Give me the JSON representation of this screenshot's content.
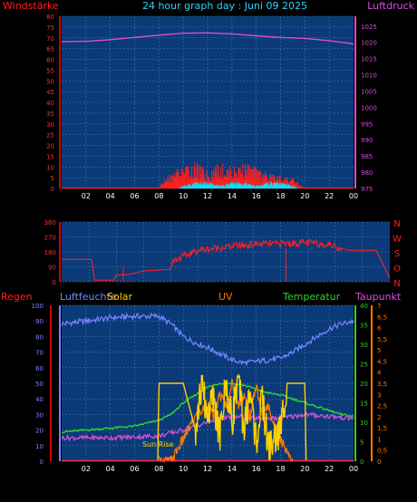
{
  "header": {
    "left": "Windstärke",
    "center": "24 hour graph day : Juni 09 2025",
    "right": "Luftdruck"
  },
  "colors": {
    "plot_bg": "#0a3a78",
    "grid": "#4f7fb8",
    "wind": "#ff2020",
    "gust": "#00e5ff",
    "pressure": "#d94cd9",
    "direction": "#ff2020",
    "humidity": "#7a86ff",
    "solar": "#ffd000",
    "uv": "#ff7a00",
    "temperature": "#30d030",
    "dewpoint": "#d94cd9",
    "rain": "#ff3030"
  },
  "x_ticks": [
    "02",
    "04",
    "06",
    "08",
    "10",
    "12",
    "14",
    "16",
    "18",
    "20",
    "22",
    "00"
  ],
  "chart_data": [
    {
      "type": "line",
      "name": "wind-pressure",
      "left_axis": {
        "label": "Windstärke",
        "ticks": [
          "80",
          "75",
          "70",
          "65",
          "60",
          "55",
          "50",
          "45",
          "40",
          "35",
          "30",
          "25",
          "20",
          "15",
          "10",
          "5",
          "0"
        ],
        "ylim": [
          0,
          80
        ]
      },
      "right_axis": {
        "label": "Luftdruck",
        "ticks": [
          "1025",
          "1020",
          "1015",
          "1010",
          "1005",
          "1000",
          "995",
          "990",
          "985",
          "980",
          "975"
        ],
        "ylim": [
          975,
          1028
        ]
      },
      "pressure": {
        "x": [
          0,
          2,
          4,
          6,
          8,
          10,
          12,
          14,
          16,
          18,
          20,
          22,
          24
        ],
        "y": [
          1020.2,
          1020.3,
          1020.8,
          1021.5,
          1022.2,
          1022.8,
          1022.9,
          1022.6,
          1022.0,
          1021.5,
          1021.2,
          1020.5,
          1019.5
        ]
      },
      "wind": {
        "x": [
          0,
          6,
          7.9,
          8.5,
          9.5,
          10.5,
          11,
          12,
          13,
          14,
          15,
          16,
          17,
          18,
          19,
          20,
          21,
          24
        ],
        "y": [
          0,
          0,
          0,
          4,
          8,
          9,
          10,
          7,
          10,
          8,
          10,
          8,
          6,
          5,
          4,
          0,
          0,
          0
        ]
      },
      "gust": {
        "x": [
          0,
          9.5,
          10,
          11,
          12,
          13,
          14,
          15,
          16,
          17,
          18,
          19,
          19.5,
          24
        ],
        "y": [
          0,
          0,
          1,
          2,
          2,
          1,
          2,
          2,
          1,
          2,
          2,
          1,
          0,
          0
        ]
      }
    },
    {
      "type": "line",
      "name": "wind-direction",
      "left_ticks": [
        "360",
        "270",
        "180",
        "90",
        "0"
      ],
      "right_labels": [
        "N",
        "W",
        "S",
        "O",
        "N"
      ],
      "ylim": [
        0,
        360
      ],
      "direction": {
        "x": [
          0,
          2.2,
          2.4,
          3.8,
          4,
          5,
          6,
          7.9,
          8.2,
          10,
          12,
          14,
          16,
          18,
          19.5,
          21,
          23,
          24
        ],
        "y": [
          135,
          135,
          10,
          10,
          40,
          45,
          65,
          75,
          130,
          190,
          210,
          225,
          230,
          235,
          225,
          190,
          190,
          20
        ]
      }
    },
    {
      "type": "line",
      "name": "weather-multi",
      "legend": [
        "Regen",
        "Luftfeuchte",
        "Solar",
        "UV",
        "Temperatur",
        "Taupunkt"
      ],
      "left_axis": {
        "label": "Luftfeuchte",
        "ticks": [
          "100",
          "90",
          "80",
          "70",
          "60",
          "50",
          "40",
          "30",
          "20",
          "10",
          "0"
        ],
        "ylim": [
          0,
          100
        ]
      },
      "temp_axis": {
        "label": "Temperatur",
        "ticks": [
          "40",
          "35",
          "30",
          "25",
          "20",
          "15",
          "10",
          "5",
          "0"
        ],
        "ylim": [
          0,
          40
        ]
      },
      "dew_axis": {
        "label": "Taupunkt",
        "ticks": [
          "7",
          "6,5",
          "6",
          "5,5",
          "5",
          "4,5",
          "4",
          "3,5",
          "3",
          "2,5",
          "2",
          "1,5",
          "1",
          "0,5",
          "0"
        ],
        "ylim": [
          0,
          7
        ]
      },
      "annotation": "Sun Rise",
      "humidity": {
        "x": [
          0,
          2,
          4,
          6,
          8,
          9,
          10,
          11,
          12,
          13,
          14,
          15,
          16,
          17,
          18,
          19,
          20,
          21,
          22,
          23,
          24
        ],
        "y": [
          88,
          90,
          92,
          93,
          93,
          88,
          80,
          76,
          73,
          69,
          65,
          63,
          64,
          65,
          66,
          70,
          75,
          80,
          85,
          88,
          90
        ]
      },
      "temperature": {
        "x": [
          0,
          2,
          4,
          6,
          8,
          9,
          10,
          11,
          12,
          13,
          14,
          15,
          16,
          17,
          18,
          19,
          20,
          21,
          22,
          23,
          24
        ],
        "y": [
          7.5,
          8,
          8.5,
          9,
          10.5,
          12,
          15,
          17,
          19,
          20,
          20,
          19.5,
          18.5,
          17.5,
          17,
          16,
          15,
          14,
          13,
          12,
          11.5
        ]
      },
      "dewpoint": {
        "x": [
          0,
          4,
          8,
          10,
          12,
          14,
          16,
          18,
          20,
          22,
          24
        ],
        "y": [
          6,
          6,
          6.5,
          8,
          10,
          11.5,
          11,
          11,
          12,
          11.5,
          11
        ]
      },
      "solar": {
        "x": [
          7.9,
          8,
          10,
          11,
          11.5,
          12,
          12.5,
          13,
          13.5,
          14,
          14.5,
          15,
          15.5,
          16,
          16.5,
          17,
          18,
          18.5,
          19,
          19.5,
          20,
          20.1
        ],
        "y": [
          0,
          50,
          50,
          20,
          49,
          30,
          40,
          15,
          50,
          25,
          55,
          20,
          45,
          12,
          40,
          8,
          20,
          50,
          50,
          50,
          50,
          0
        ]
      },
      "uv": {
        "x": [
          8,
          9,
          9.5,
          10,
          10.5,
          11,
          12,
          12.5,
          13,
          13.5,
          14,
          14.5,
          15,
          15.5,
          16,
          16.5,
          17,
          17.5,
          18,
          18.5,
          19
        ],
        "y": [
          0,
          0,
          0.5,
          1,
          1.5,
          2,
          2.5,
          2,
          3,
          2.5,
          3.5,
          2.5,
          3,
          2,
          3.5,
          2,
          2.5,
          1.5,
          1,
          0.5,
          0
        ]
      },
      "rain": {
        "x": [
          0,
          24
        ],
        "y": [
          0,
          0
        ]
      }
    }
  ]
}
